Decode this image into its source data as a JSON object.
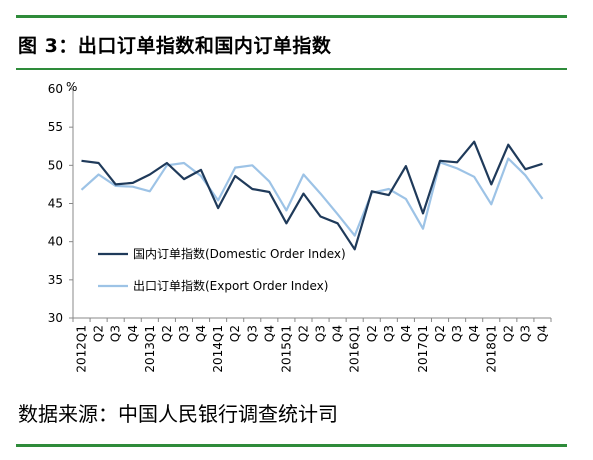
{
  "figure": {
    "title": "图 3：出口订单指数和国内订单指数",
    "source": "数据来源：中国人民银行调查统计司"
  },
  "colors": {
    "rule": "#2e8b3a",
    "domestic": "#1f3a5a",
    "export": "#9dc3e6"
  },
  "chart_data": {
    "type": "line",
    "title": "",
    "xlabel": "",
    "ylabel": "%",
    "ylim": [
      30,
      60
    ],
    "yticks": [
      30,
      35,
      40,
      45,
      50,
      55,
      60
    ],
    "grid": false,
    "legend_position": "lower-left",
    "categories": [
      "2012Q1",
      "Q2",
      "Q3",
      "Q4",
      "2013Q1",
      "Q2",
      "Q3",
      "Q4",
      "2014Q1",
      "Q2",
      "Q3",
      "Q4",
      "2015Q1",
      "Q2",
      "Q3",
      "Q4",
      "2016Q1",
      "Q2",
      "Q3",
      "Q4",
      "2017Q1",
      "Q2",
      "Q3",
      "Q4",
      "2018Q1",
      "Q2",
      "Q3",
      "Q4"
    ],
    "series": [
      {
        "name": "国内订单指数(Domestic Order Index)",
        "color": "#1f3a5a",
        "values": [
          50.6,
          50.3,
          47.5,
          47.7,
          48.8,
          50.3,
          48.2,
          49.4,
          44.4,
          48.6,
          46.9,
          46.5,
          42.4,
          46.3,
          43.3,
          42.4,
          39.0,
          46.6,
          46.1,
          49.9,
          43.7,
          50.6,
          50.4,
          53.1,
          47.5,
          52.7,
          49.5,
          50.2
        ]
      },
      {
        "name": "出口订单指数(Export Order Index)",
        "color": "#9dc3e6",
        "values": [
          46.8,
          48.8,
          47.3,
          47.2,
          46.6,
          50.0,
          50.3,
          48.6,
          45.4,
          49.7,
          50.0,
          47.9,
          44.1,
          48.8,
          46.3,
          43.6,
          40.8,
          46.4,
          46.9,
          45.6,
          41.7,
          50.4,
          49.6,
          48.5,
          44.9,
          50.9,
          48.7,
          45.6
        ]
      }
    ]
  }
}
